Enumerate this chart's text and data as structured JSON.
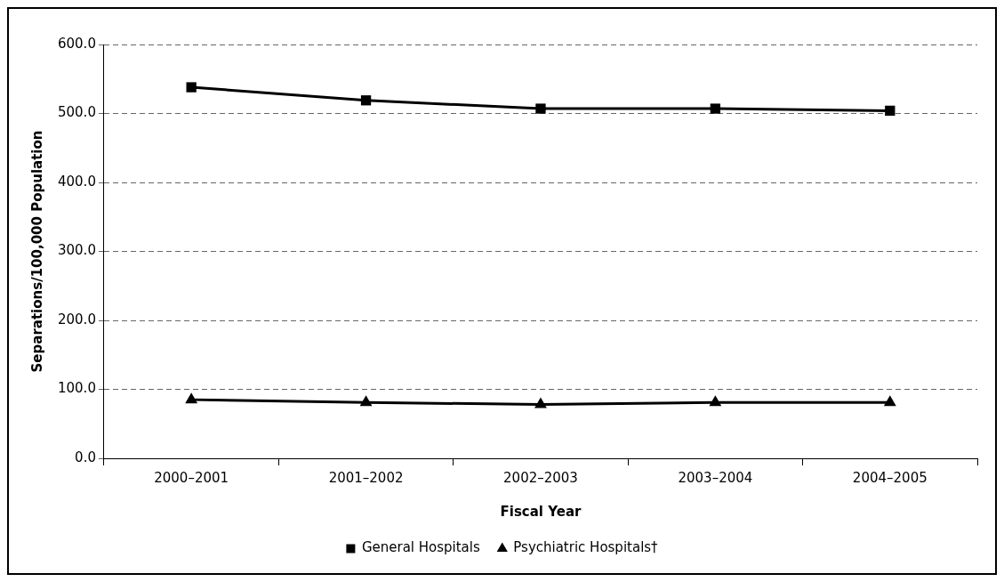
{
  "chart_data": {
    "type": "line",
    "xlabel": "Fiscal Year",
    "ylabel": "Separations/100,000 Population",
    "categories": [
      "2000–2001",
      "2001–2002",
      "2002–2003",
      "2003–2004",
      "2004–2005"
    ],
    "series": [
      {
        "name": "General Hospitals",
        "color": "#000000",
        "marker": "square",
        "values": [
          538,
          519,
          507,
          507,
          504
        ]
      },
      {
        "name": "Psychiatric Hospitals†",
        "color": "#000000",
        "marker": "triangle",
        "values": [
          85,
          81,
          78,
          81,
          81
        ]
      }
    ],
    "ylim": [
      0,
      600
    ],
    "yticks": [
      {
        "value": 0,
        "label": "0.0"
      },
      {
        "value": 100,
        "label": "100.0"
      },
      {
        "value": 200,
        "label": "200.0"
      },
      {
        "value": 300,
        "label": "300.0"
      },
      {
        "value": 400,
        "label": "400.0"
      },
      {
        "value": 500,
        "label": "500.0"
      },
      {
        "value": 600,
        "label": "600.0"
      }
    ],
    "grid": "y",
    "legend": "bottom",
    "line_style": "solid"
  }
}
